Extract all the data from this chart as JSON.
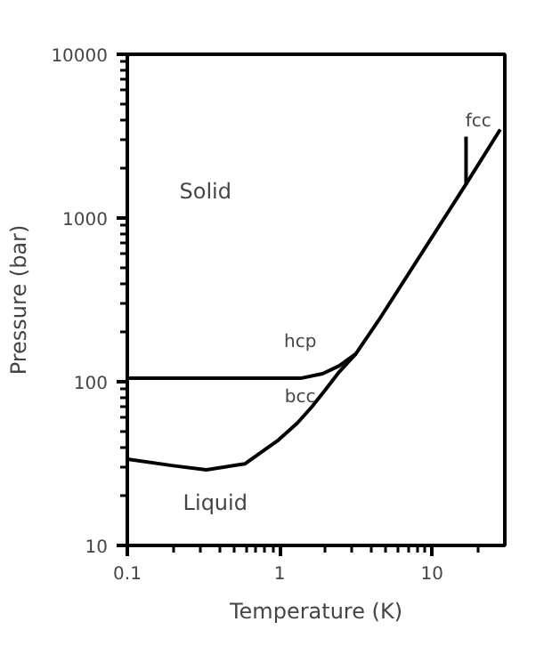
{
  "chart_data": {
    "type": "line",
    "xlabel": "Temperature (K)",
    "ylabel": "Pressure (bar)",
    "log": "xy",
    "grid": false,
    "marker": "none",
    "line_style": "solid",
    "xlim": [
      0.1,
      30
    ],
    "ylim": [
      10,
      10000
    ],
    "xticks": [
      0.1,
      1,
      10
    ],
    "yticks": [
      10,
      100,
      1000,
      10000
    ],
    "series": [
      {
        "color": "#000000",
        "x": [
          0.1,
          0.2,
          0.33,
          0.59,
          0.98,
          1.3,
          1.62,
          2.0,
          2.46,
          3.16,
          4.43,
          16.7,
          28
        ],
        "values": [
          33.7,
          30.7,
          29,
          31.5,
          44,
          55.7,
          70,
          89.6,
          115,
          148,
          235,
          1610,
          3475
        ]
      },
      {
        "color": "#000000",
        "x": [
          0.1,
          1.37,
          1.91,
          2.46,
          3.16
        ],
        "values": [
          105,
          105,
          112,
          125,
          148
        ]
      },
      {
        "color": "#000000",
        "x": [
          16.7,
          16.7
        ],
        "values": [
          1610,
          3140
        ]
      }
    ],
    "annotations": [
      "Solid",
      "Liquid",
      "hcp",
      "bcc",
      "fcc"
    ]
  }
}
